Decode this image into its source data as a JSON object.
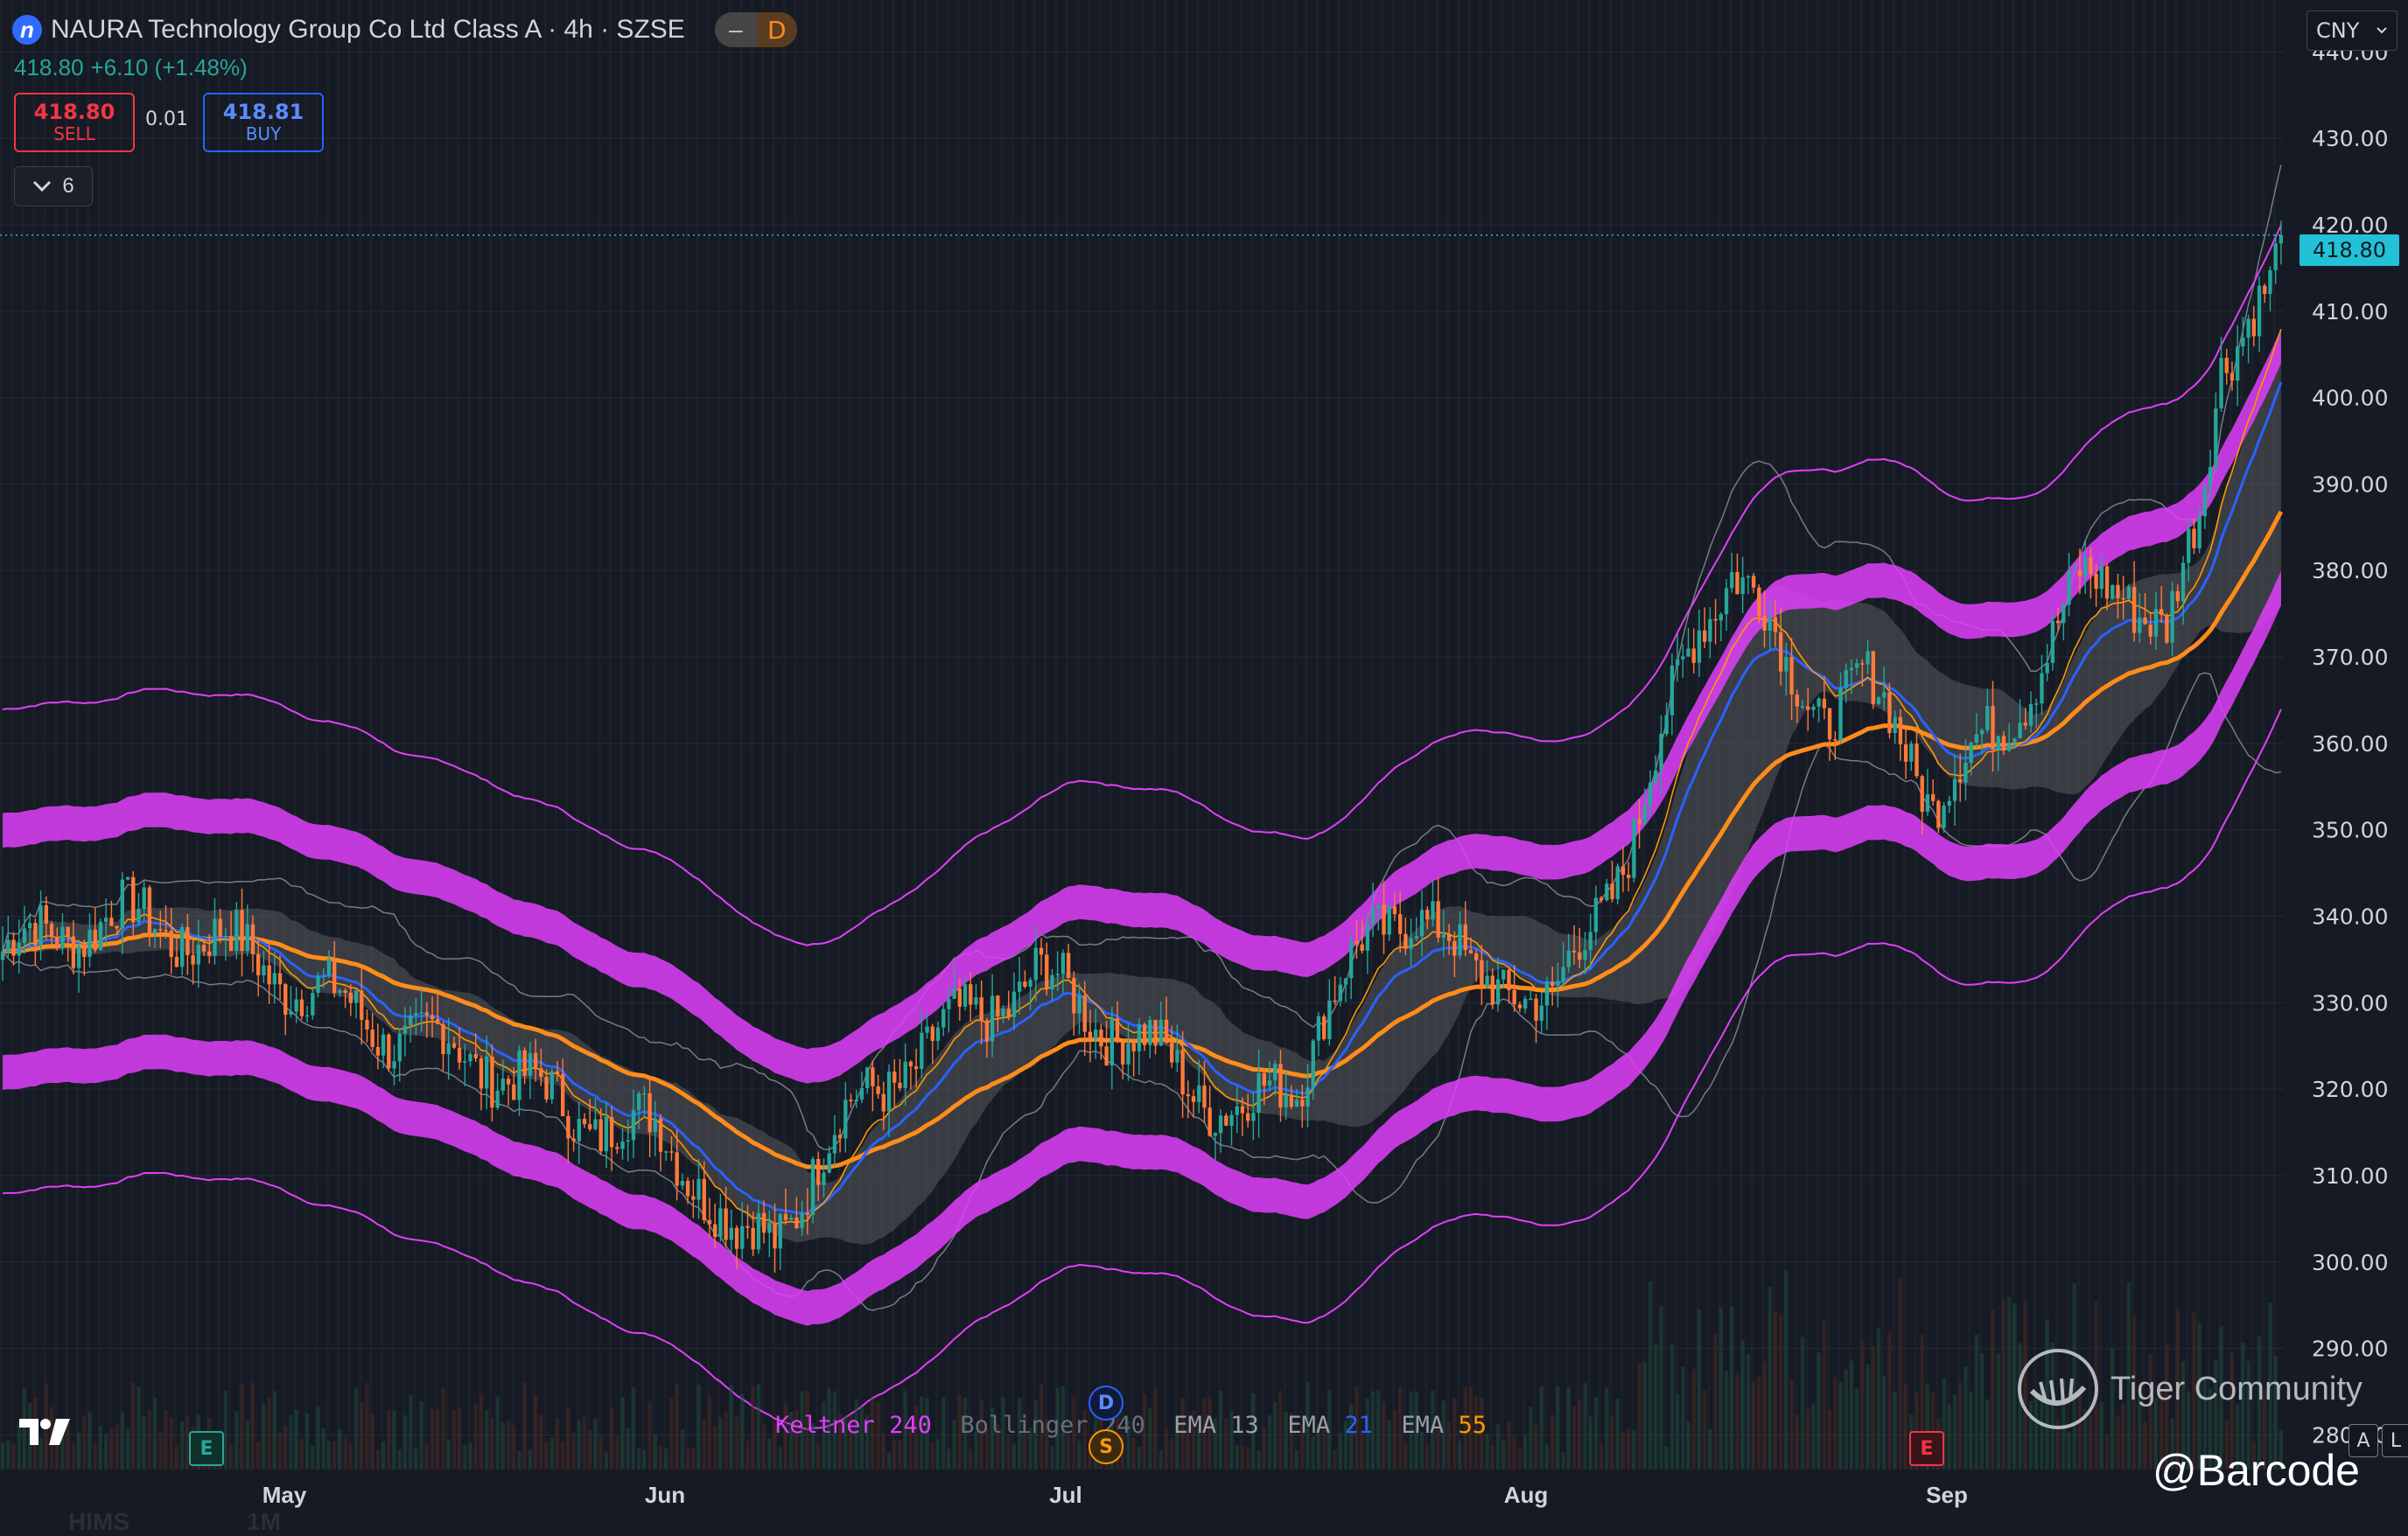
{
  "header": {
    "logo_letter": "n",
    "title": "NAURA Technology Group Co Ltd Class A · 4h · SZSE",
    "toggle_left": "–",
    "toggle_right": "D",
    "last_price": "418.80",
    "change": "+6.10 (+1.48%)"
  },
  "trade": {
    "sell_price": "418.80",
    "sell_label": "SELL",
    "spread": "0.01",
    "buy_price": "418.81",
    "buy_label": "BUY"
  },
  "indicators_toggle": {
    "count": "6"
  },
  "currency": {
    "selected": "CNY"
  },
  "price_tag": "418.80",
  "legend": [
    {
      "name": "Keltner",
      "param": "240",
      "name_color": "#e040fb",
      "param_color": "#e040fb"
    },
    {
      "name": "Bollinger",
      "param": "240",
      "name_color": "#6b6f7a",
      "param_color": "#6b6f7a"
    },
    {
      "name": "EMA",
      "param": "13",
      "name_color": "#9aa0aa",
      "param_color": "#9aa0aa"
    },
    {
      "name": "EMA",
      "param": "21",
      "name_color": "#9aa0aa",
      "param_color": "#2962ff"
    },
    {
      "name": "EMA",
      "param": "55",
      "name_color": "#9aa0aa",
      "param_color": "#ff9800"
    }
  ],
  "events": {
    "earnings_1": "E",
    "earnings_2": "E",
    "dividend": "D",
    "split": "S"
  },
  "watermark": {
    "brand": "Tiger Community",
    "handle": "@Barcode"
  },
  "scale_buttons": {
    "auto": "A",
    "log": "L"
  },
  "footer_ghost": [
    "HIMS",
    "1M"
  ],
  "colors": {
    "up": "#26a69a",
    "down": "#ff7a3a",
    "keltner": "#e040fb",
    "bollinger": "#787b86",
    "ema13": "#ff9800",
    "ema21": "#2962ff",
    "ema55": "#ff8c1a",
    "last_price": "#22c1d6"
  },
  "chart_data": {
    "type": "candlestick",
    "symbol": "NAURA Technology Group Co Ltd Class A",
    "interval": "4h",
    "exchange": "SZSE",
    "currency": "CNY",
    "x_tick_labels": [
      "May",
      "Jun",
      "Jul",
      "Aug",
      "Sep"
    ],
    "y_tick_labels": [
      "280.00",
      "290.00",
      "300.00",
      "310.00",
      "320.00",
      "330.00",
      "340.00",
      "350.00",
      "360.00",
      "370.00",
      "380.00",
      "390.00",
      "400.00",
      "410.00",
      "420.00",
      "430.00",
      "440.00"
    ],
    "ylim": [
      276,
      446
    ],
    "grid": true,
    "last_price": 418.8,
    "close_path_anchors": [
      [
        0,
        336
      ],
      [
        20,
        340
      ],
      [
        40,
        337
      ],
      [
        55,
        332
      ],
      [
        70,
        327
      ],
      [
        90,
        323
      ],
      [
        105,
        317
      ],
      [
        120,
        315
      ],
      [
        128,
        310
      ],
      [
        135,
        302
      ],
      [
        142,
        303
      ],
      [
        150,
        312
      ],
      [
        160,
        320
      ],
      [
        175,
        327
      ],
      [
        190,
        333
      ],
      [
        200,
        329
      ],
      [
        210,
        325
      ],
      [
        220,
        320
      ],
      [
        228,
        317
      ],
      [
        238,
        321
      ],
      [
        243,
        330
      ],
      [
        252,
        337
      ],
      [
        260,
        342
      ],
      [
        265,
        338
      ],
      [
        270,
        332
      ],
      [
        278,
        333
      ],
      [
        285,
        329
      ],
      [
        290,
        336
      ],
      [
        300,
        350
      ],
      [
        305,
        360
      ],
      [
        312,
        374
      ],
      [
        318,
        381
      ],
      [
        322,
        377
      ],
      [
        328,
        368
      ],
      [
        335,
        364
      ],
      [
        342,
        367
      ],
      [
        350,
        360
      ],
      [
        355,
        354
      ],
      [
        362,
        358
      ],
      [
        368,
        362
      ],
      [
        375,
        370
      ],
      [
        382,
        378
      ],
      [
        390,
        379
      ],
      [
        398,
        372
      ],
      [
        404,
        386
      ],
      [
        408,
        405
      ],
      [
        413,
        410
      ],
      [
        417,
        412
      ],
      [
        420,
        418.8
      ]
    ],
    "bars": 420
  }
}
